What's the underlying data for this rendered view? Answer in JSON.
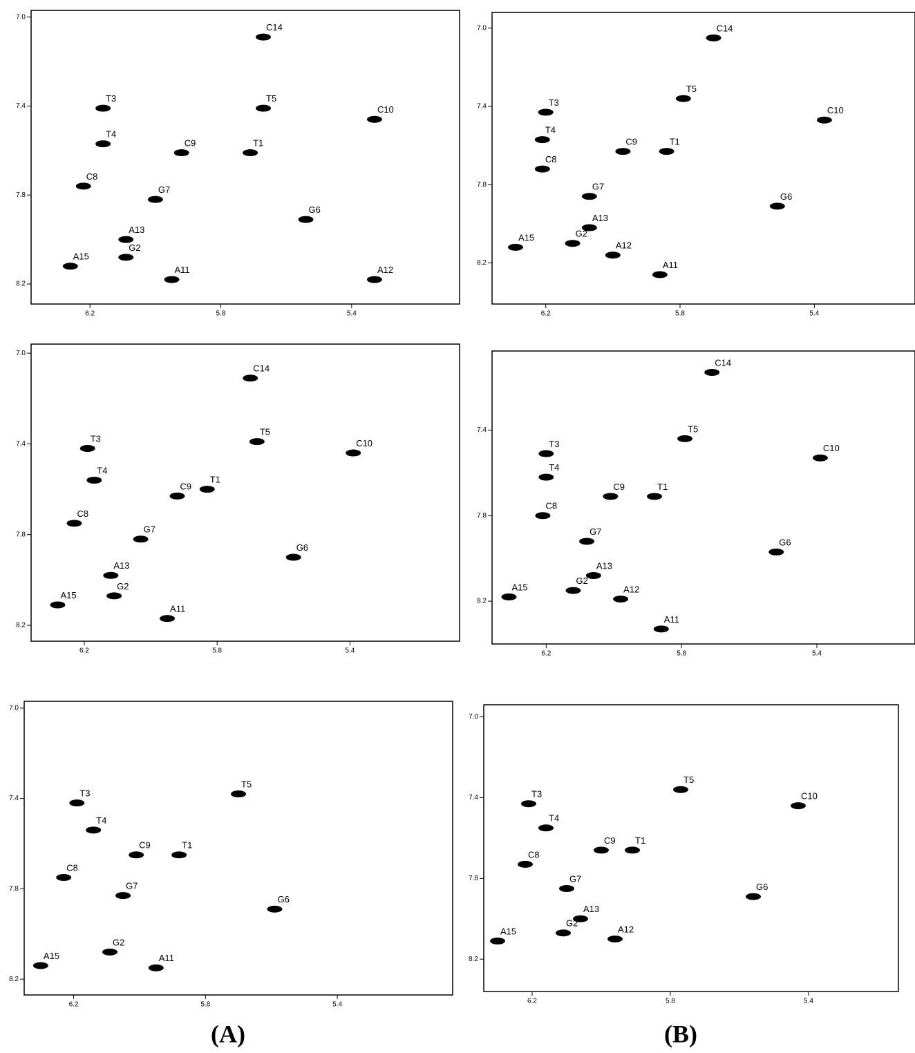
{
  "chart_data": [
    {
      "type": "scatter",
      "xlim": [
        6.38,
        5.07
      ],
      "ylim": [
        6.97,
        8.29
      ],
      "xticks": [
        6.2,
        5.8,
        5.4
      ],
      "yticks": [
        {
          "value": 7,
          "label": "7.0"
        },
        7.4,
        7.8,
        8.2
      ],
      "peaks": [
        {
          "label": "C14",
          "x": 5.67,
          "y": 7.09
        },
        {
          "label": "T5",
          "x": 5.67,
          "y": 7.41
        },
        {
          "label": "C10",
          "x": 5.33,
          "y": 7.46
        },
        {
          "label": "T3",
          "x": 6.16,
          "y": 7.41
        },
        {
          "label": "T4",
          "x": 6.16,
          "y": 7.57
        },
        {
          "label": "C9",
          "x": 5.92,
          "y": 7.61
        },
        {
          "label": "T1",
          "x": 5.71,
          "y": 7.61
        },
        {
          "label": "C8",
          "x": 6.22,
          "y": 7.76
        },
        {
          "label": "G7",
          "x": 6.0,
          "y": 7.82
        },
        {
          "label": "G6",
          "x": 5.54,
          "y": 7.91
        },
        {
          "label": "A13",
          "x": 6.09,
          "y": 8.0
        },
        {
          "label": "G2",
          "x": 6.09,
          "y": 8.08
        },
        {
          "label": "A15",
          "x": 6.26,
          "y": 8.12
        },
        {
          "label": "A11",
          "x": 5.95,
          "y": 8.18
        },
        {
          "label": "A12",
          "x": 5.33,
          "y": 8.18
        }
      ]
    },
    {
      "type": "scatter",
      "xlim": [
        6.36,
        5.1
      ],
      "ylim": [
        6.92,
        8.41
      ],
      "xticks": [
        6.2,
        5.8,
        5.4
      ],
      "yticks": [
        {
          "value": 7,
          "label": "7.0"
        },
        7.4,
        7.8,
        8.2
      ],
      "peaks": [
        {
          "label": "C14",
          "x": 5.7,
          "y": 7.05
        },
        {
          "label": "T5",
          "x": 5.79,
          "y": 7.36
        },
        {
          "label": "C10",
          "x": 5.37,
          "y": 7.47
        },
        {
          "label": "T3",
          "x": 6.2,
          "y": 7.43
        },
        {
          "label": "T4",
          "x": 6.21,
          "y": 7.57
        },
        {
          "label": "T1",
          "x": 5.84,
          "y": 7.63
        },
        {
          "label": "C9",
          "x": 5.97,
          "y": 7.63
        },
        {
          "label": "C8",
          "x": 6.21,
          "y": 7.72
        },
        {
          "label": "G7",
          "x": 6.07,
          "y": 7.86
        },
        {
          "label": "G6",
          "x": 5.51,
          "y": 7.91
        },
        {
          "label": "A13",
          "x": 6.07,
          "y": 8.02
        },
        {
          "label": "G2",
          "x": 6.12,
          "y": 8.1
        },
        {
          "label": "A15",
          "x": 6.29,
          "y": 8.12
        },
        {
          "label": "A12",
          "x": 6.0,
          "y": 8.16
        },
        {
          "label": "A11",
          "x": 5.86,
          "y": 8.26
        }
      ]
    },
    {
      "type": "scatter",
      "xlim": [
        6.36,
        5.07
      ],
      "ylim": [
        6.96,
        8.27
      ],
      "xticks": [
        6.2,
        5.8,
        5.4
      ],
      "yticks": [
        {
          "value": 7,
          "label": "7.0"
        },
        7.4,
        7.8,
        8.2
      ],
      "peaks": [
        {
          "label": "C14",
          "x": 5.7,
          "y": 7.11
        },
        {
          "label": "T5",
          "x": 5.68,
          "y": 7.39
        },
        {
          "label": "C10",
          "x": 5.39,
          "y": 7.44
        },
        {
          "label": "T3",
          "x": 6.19,
          "y": 7.42
        },
        {
          "label": "T4",
          "x": 6.17,
          "y": 7.56
        },
        {
          "label": "C9",
          "x": 5.92,
          "y": 7.63
        },
        {
          "label": "T1",
          "x": 5.83,
          "y": 7.6
        },
        {
          "label": "C8",
          "x": 6.23,
          "y": 7.75
        },
        {
          "label": "G7",
          "x": 6.03,
          "y": 7.82
        },
        {
          "label": "G6",
          "x": 5.57,
          "y": 7.9
        },
        {
          "label": "A13",
          "x": 6.12,
          "y": 7.98
        },
        {
          "label": "G2",
          "x": 6.11,
          "y": 8.07
        },
        {
          "label": "A15",
          "x": 6.28,
          "y": 8.11
        },
        {
          "label": "A11",
          "x": 5.95,
          "y": 8.17
        }
      ]
    },
    {
      "type": "scatter",
      "xlim": [
        6.36,
        5.11
      ],
      "ylim": [
        7.03,
        8.4
      ],
      "xticks": [
        6.2,
        5.8,
        5.4
      ],
      "yticks": [
        7.4,
        7.8,
        8.2
      ],
      "peaks": [
        {
          "label": "C14",
          "x": 5.71,
          "y": 7.13
        },
        {
          "label": "T5",
          "x": 5.79,
          "y": 7.44
        },
        {
          "label": "C10",
          "x": 5.39,
          "y": 7.53
        },
        {
          "label": "T3",
          "x": 6.2,
          "y": 7.51
        },
        {
          "label": "T4",
          "x": 6.2,
          "y": 7.62
        },
        {
          "label": "C9",
          "x": 6.01,
          "y": 7.71
        },
        {
          "label": "T1",
          "x": 5.88,
          "y": 7.71
        },
        {
          "label": "C8",
          "x": 6.21,
          "y": 7.8
        },
        {
          "label": "G7",
          "x": 6.08,
          "y": 7.92
        },
        {
          "label": "G6",
          "x": 5.52,
          "y": 7.97
        },
        {
          "label": "A13",
          "x": 6.06,
          "y": 8.08
        },
        {
          "label": "G2",
          "x": 6.12,
          "y": 8.15
        },
        {
          "label": "A15",
          "x": 6.31,
          "y": 8.18
        },
        {
          "label": "A12",
          "x": 5.98,
          "y": 8.19
        },
        {
          "label": "A11",
          "x": 5.86,
          "y": 8.33
        }
      ]
    },
    {
      "type": "scatter",
      "xlim": [
        6.35,
        5.05
      ],
      "ylim": [
        6.97,
        8.27
      ],
      "xticks": [
        6.2,
        5.8,
        5.4
      ],
      "yticks": [
        {
          "value": 7,
          "label": "7.0"
        },
        7.4,
        7.8,
        8.2
      ],
      "peaks": [
        {
          "label": "T5",
          "x": 5.7,
          "y": 7.38
        },
        {
          "label": "T3",
          "x": 6.19,
          "y": 7.42
        },
        {
          "label": "T4",
          "x": 6.14,
          "y": 7.54
        },
        {
          "label": "C9",
          "x": 6.01,
          "y": 7.65
        },
        {
          "label": "T1",
          "x": 5.88,
          "y": 7.65
        },
        {
          "label": "C8",
          "x": 6.23,
          "y": 7.75
        },
        {
          "label": "G7",
          "x": 6.05,
          "y": 7.83
        },
        {
          "label": "G6",
          "x": 5.59,
          "y": 7.89
        },
        {
          "label": "G2",
          "x": 6.09,
          "y": 8.08
        },
        {
          "label": "A15",
          "x": 6.3,
          "y": 8.14
        },
        {
          "label": "A11",
          "x": 5.95,
          "y": 8.15
        }
      ]
    },
    {
      "type": "scatter",
      "xlim": [
        6.34,
        5.14
      ],
      "ylim": [
        6.94,
        8.36
      ],
      "xticks": [
        6.2,
        5.8,
        5.4
      ],
      "yticks": [
        {
          "value": 7,
          "label": "7.0"
        },
        7.4,
        7.8,
        8.2
      ],
      "peaks": [
        {
          "label": "T5",
          "x": 5.77,
          "y": 7.36
        },
        {
          "label": "C10",
          "x": 5.43,
          "y": 7.44
        },
        {
          "label": "T3",
          "x": 6.21,
          "y": 7.43
        },
        {
          "label": "T4",
          "x": 6.16,
          "y": 7.55
        },
        {
          "label": "C9",
          "x": 6.0,
          "y": 7.66
        },
        {
          "label": "T1",
          "x": 5.91,
          "y": 7.66
        },
        {
          "label": "C8",
          "x": 6.22,
          "y": 7.73
        },
        {
          "label": "G7",
          "x": 6.1,
          "y": 7.85
        },
        {
          "label": "G6",
          "x": 5.56,
          "y": 7.89
        },
        {
          "label": "A13",
          "x": 6.06,
          "y": 8.0
        },
        {
          "label": "G2",
          "x": 6.11,
          "y": 8.07
        },
        {
          "label": "A12",
          "x": 5.96,
          "y": 8.1
        },
        {
          "label": "A15",
          "x": 6.3,
          "y": 8.11
        }
      ]
    }
  ],
  "panel_labels": [
    "(A)",
    "(B)"
  ]
}
